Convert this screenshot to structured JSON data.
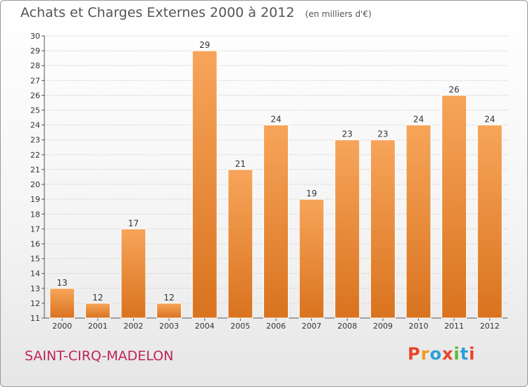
{
  "header": {
    "title": "Achats et Charges Externes 2000 à 2012",
    "unit": "(en milliers d'€)"
  },
  "footer": {
    "commune": "SAINT-CIRQ-MADELON",
    "logo_text": "Proxiti"
  },
  "colors": {
    "bar_light": "#f7a55a",
    "bar_dark": "#d9731f",
    "logo": [
      "#e8452c",
      "#f29b1d",
      "#2d9fd8",
      "#e8452c",
      "#5cb83f",
      "#2d9fd8",
      "#e8452c"
    ]
  },
  "chart_data": {
    "type": "bar",
    "title": "Achats et Charges Externes 2000 à 2012",
    "subtitle": "(en milliers d'€)",
    "categories": [
      "2000",
      "2001",
      "2002",
      "2003",
      "2004",
      "2005",
      "2006",
      "2007",
      "2008",
      "2009",
      "2010",
      "2011",
      "2012"
    ],
    "values": [
      13,
      12,
      17,
      12,
      29,
      21,
      24,
      19,
      23,
      23,
      24,
      26,
      24
    ],
    "ylim": [
      11,
      30
    ],
    "yticks": [
      11,
      12,
      13,
      14,
      15,
      16,
      17,
      18,
      19,
      20,
      21,
      22,
      23,
      24,
      25,
      26,
      27,
      28,
      29,
      30
    ],
    "grid": true,
    "xlabel": "",
    "ylabel": ""
  }
}
